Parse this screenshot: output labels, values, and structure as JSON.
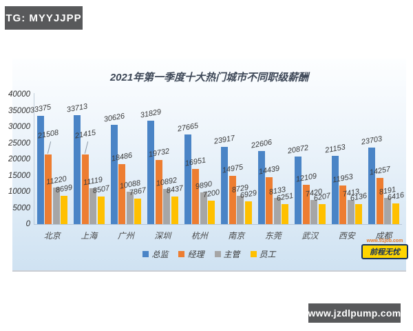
{
  "watermark_top": {
    "text": "TG: MYYJJPP"
  },
  "watermark_bottom": {
    "text": "www.jzdlpump.com"
  },
  "brand_logo": {
    "url_text": "www.51job.com",
    "brand_text": "前程无忧"
  },
  "chart_data": {
    "type": "bar",
    "title": "2021年第一季度十大热门城市不同职级薪酬",
    "categories": [
      "北京",
      "上海",
      "广州",
      "深圳",
      "杭州",
      "南京",
      "东莞",
      "武汉",
      "西安",
      "成都"
    ],
    "series": [
      {
        "name": "总监",
        "color": "#4a84c6",
        "values": [
          33375,
          33713,
          30626,
          31829,
          27665,
          23917,
          22606,
          20872,
          21153,
          23703
        ]
      },
      {
        "name": "经理",
        "color": "#ed7d31",
        "values": [
          21508,
          21415,
          18486,
          19732,
          16951,
          14975,
          14439,
          12109,
          11953,
          14257
        ]
      },
      {
        "name": "主管",
        "color": "#a6a6a6",
        "values": [
          11220,
          11119,
          10088,
          10892,
          9890,
          8729,
          8133,
          7420,
          7413,
          8191
        ]
      },
      {
        "name": "员工",
        "color": "#ffc000",
        "values": [
          8699,
          8507,
          7867,
          8437,
          7200,
          6929,
          6251,
          6207,
          6136,
          6416
        ]
      }
    ],
    "xlabel": "",
    "ylabel": "",
    "ylim": [
      0,
      40000
    ],
    "ytick_step": 5000,
    "grid": false,
    "legend_position": "bottom",
    "data_labels": true,
    "callouts": [
      {
        "city": "北京",
        "series": "经理"
      },
      {
        "city": "上海",
        "series": "经理"
      }
    ]
  }
}
